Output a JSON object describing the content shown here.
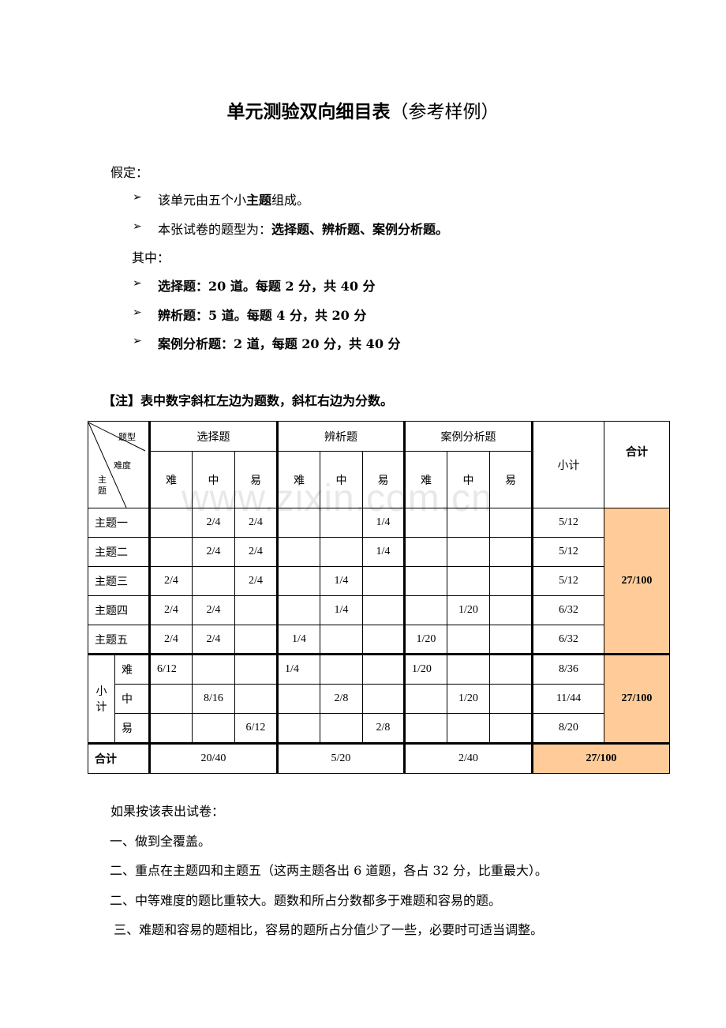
{
  "title": {
    "bold": "单元测验双向细目表",
    "normal": "（参考样例）"
  },
  "assume_label": "假定：",
  "bullets1": [
    {
      "parts": [
        {
          "t": "该单元由五个小",
          "b": false
        },
        {
          "t": "主题",
          "b": true
        },
        {
          "t": "组成。",
          "b": false
        }
      ]
    },
    {
      "parts": [
        {
          "t": "本张试卷的题型为：",
          "b": false
        },
        {
          "t": "选择题、辨析题、案例分析题。",
          "b": true
        }
      ]
    }
  ],
  "among_label": "其中：",
  "bullets2": [
    {
      "parts": [
        {
          "t": "选择题：20 道。每题 2 分，共 40 分",
          "b": true
        }
      ]
    },
    {
      "parts": [
        {
          "t": "辨析题：5 道。每题 4 分，共 20 分",
          "b": true
        }
      ]
    },
    {
      "parts": [
        {
          "t": "案例分析题：2 道，每题 20 分，共 40 分",
          "b": true
        }
      ]
    }
  ],
  "bullet_icon": "arrowhead-bullet-icon",
  "note": "【注】表中数字斜杠左边为题数，斜杠右边为分数。",
  "watermark": "www.zixin.com.cn",
  "table": {
    "corner": {
      "type": "题型",
      "difficulty": "难度",
      "topic": "主\n题"
    },
    "groups": [
      "选择题",
      "辨析题",
      "案例分析题"
    ],
    "levels": [
      "难",
      "中",
      "易"
    ],
    "subtotal_header": "小计",
    "total_header": "合计",
    "topic_rows": [
      {
        "label": "主题一",
        "cells": [
          "",
          "2/4",
          "2/4",
          "",
          "",
          "1/4",
          "",
          "",
          ""
        ],
        "subtotal": "5/12"
      },
      {
        "label": "主题二",
        "cells": [
          "",
          "2/4",
          "2/4",
          "",
          "",
          "1/4",
          "",
          "",
          ""
        ],
        "subtotal": "5/12"
      },
      {
        "label": "主题三",
        "cells": [
          "2/4",
          "",
          "2/4",
          "",
          "1/4",
          "",
          "",
          "",
          ""
        ],
        "subtotal": "5/12"
      },
      {
        "label": "主题四",
        "cells": [
          "2/4",
          "2/4",
          "",
          "",
          "1/4",
          "",
          "",
          "1/20",
          ""
        ],
        "subtotal": "6/32"
      },
      {
        "label": "主题五",
        "cells": [
          "2/4",
          "2/4",
          "",
          "1/4",
          "",
          "",
          "1/20",
          "",
          ""
        ],
        "subtotal": "6/32"
      }
    ],
    "topic_total": "27/100",
    "subtotal_label": "小\n计",
    "level_rows": [
      {
        "label": "难",
        "cells": [
          "6/12",
          "",
          "",
          "1/4",
          "",
          "",
          "1/20",
          "",
          ""
        ],
        "subtotal": "8/36"
      },
      {
        "label": "中",
        "cells": [
          "",
          "8/16",
          "",
          "",
          "2/8",
          "",
          "",
          "1/20",
          ""
        ],
        "subtotal": "11/44"
      },
      {
        "label": "易",
        "cells": [
          "",
          "",
          "6/12",
          "",
          "",
          "2/8",
          "",
          "",
          ""
        ],
        "subtotal": "8/20"
      }
    ],
    "level_total": "27/100",
    "total_row": {
      "label": "合计",
      "values": [
        "20/40",
        "5/20",
        "2/40"
      ],
      "grand": "27/100"
    },
    "highlight_color": "#ffcc99"
  },
  "conclusion": [
    "如果按该表出试卷：",
    "一、做到全覆盖。",
    "二、重点在主题四和主题五（这两主题各出 6 道题，各占 32 分，比重最大）。",
    "二、中等难度的题比重较大。题数和所占分数都多于难题和容易的题。",
    " 三、难题和容易的题相比，容易的题所占分值少了一些，必要时可适当调整。"
  ]
}
